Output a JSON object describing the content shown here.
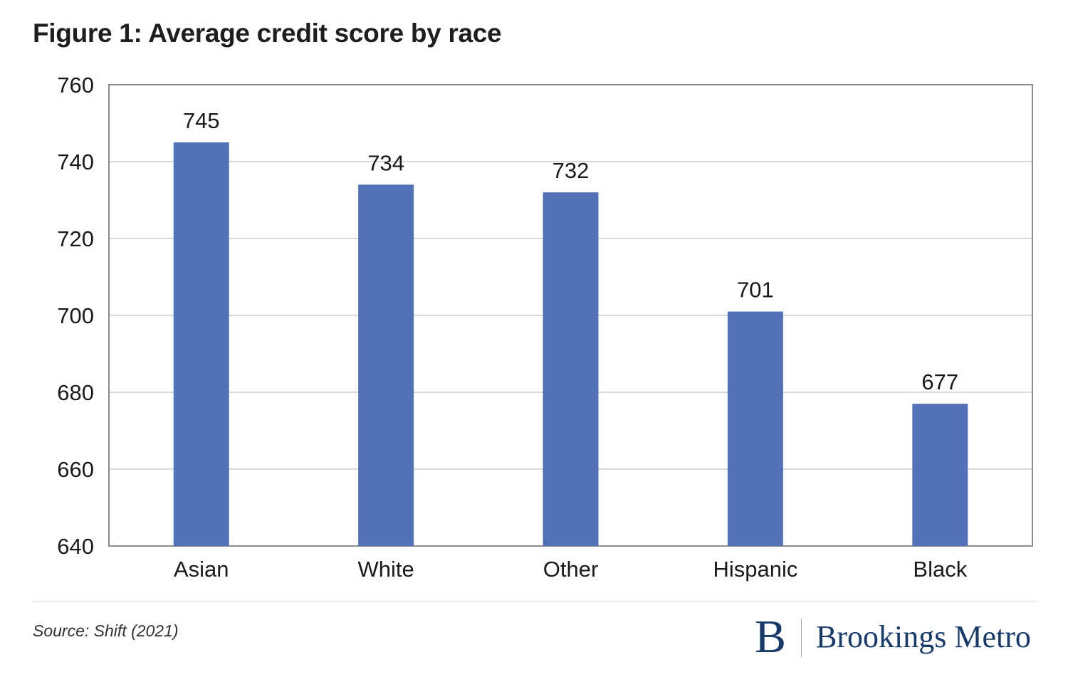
{
  "figure": {
    "title": "Figure 1: Average credit score by race",
    "source": "Source: Shift (2021)"
  },
  "logo": {
    "mark": "B",
    "text": "Brookings Metro"
  },
  "colors": {
    "bar": "#5172b8",
    "grid": "#d9d9d9",
    "frame": "#8c8c8c"
  },
  "chart_data": {
    "type": "bar",
    "title": "Figure 1: Average credit score by race",
    "xlabel": "",
    "ylabel": "",
    "categories": [
      "Asian",
      "White",
      "Other",
      "Hispanic",
      "Black"
    ],
    "values": [
      745,
      734,
      732,
      701,
      677
    ],
    "ylim": [
      640,
      760
    ],
    "yticks": [
      640,
      660,
      680,
      700,
      720,
      740,
      760
    ],
    "grid": true,
    "data_labels": true
  }
}
